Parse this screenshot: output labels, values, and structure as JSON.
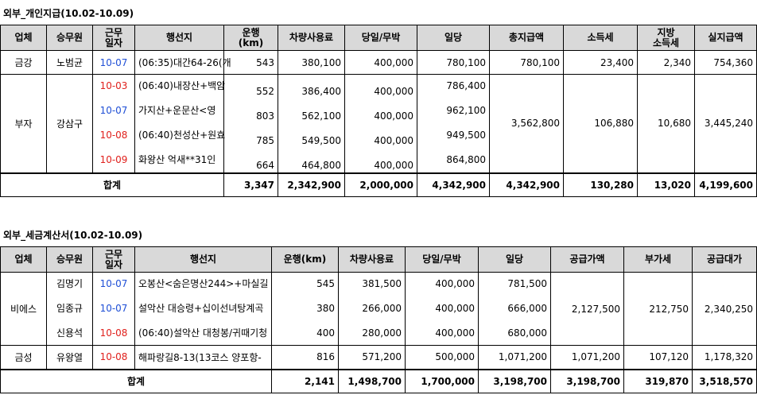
{
  "table1": {
    "title": "외부_개인지급(10.02-10.09)",
    "headers": [
      "업체",
      "승무원",
      "근무일자",
      "행선지",
      "운행(km)",
      "차량사용료",
      "당일/무박",
      "일당",
      "총지급액",
      "소득세",
      "지방소득세",
      "실지급액"
    ],
    "header_lines": {
      "workday": [
        "근무",
        "일자"
      ],
      "km": [
        "운행",
        "(km)"
      ],
      "local_tax": [
        "지방",
        "소득세"
      ]
    },
    "geumgang": {
      "company": "금강",
      "crew": "노범균",
      "date": "10-07",
      "route": "(06:35)대간64-26(개",
      "km": "543",
      "vehicle_fee": "380,100",
      "trip": "400,000",
      "daily": "780,100",
      "total": "780,100",
      "income_tax": "23,400",
      "local_tax": "2,340",
      "net": "754,360"
    },
    "buja": {
      "company": "부자",
      "crew": "강삼구",
      "dates": [
        "10-03",
        "10-07",
        "10-08",
        "10-09"
      ],
      "routes": [
        "(06:40)내장산+백암",
        "가지산+운문산<영",
        "(06:40)천성산+원효",
        "화왕산 억새**31인"
      ],
      "km": [
        "552",
        "803",
        "785",
        "664"
      ],
      "vehicle_fee": [
        "386,400",
        "562,100",
        "549,500",
        "464,800"
      ],
      "trip": [
        "400,000",
        "400,000",
        "400,000",
        "400,000"
      ],
      "daily": [
        "786,400",
        "962,100",
        "949,500",
        "864,800"
      ],
      "total": "3,562,800",
      "income_tax": "106,880",
      "local_tax": "10,680",
      "net": "3,445,240"
    },
    "totals": {
      "label": "합계",
      "km": "3,347",
      "vehicle_fee": "2,342,900",
      "trip": "2,000,000",
      "daily": "4,342,900",
      "total": "4,342,900",
      "income_tax": "130,280",
      "local_tax": "13,020",
      "net": "4,199,600"
    }
  },
  "table2": {
    "title": "외부_세금계산서(10.02-10.09)",
    "headers": [
      "업체",
      "승무원",
      "근무일자",
      "행선지",
      "운행(km)",
      "차량사용료",
      "당일/무박",
      "일당",
      "공급가액",
      "부가세",
      "공급대가"
    ],
    "header_lines": {
      "workday": [
        "근무",
        "일자"
      ]
    },
    "bieseu": {
      "company": "비에스",
      "crews": [
        "김명기",
        "임종규",
        "신용석"
      ],
      "dates": [
        "10-07",
        "10-07",
        "10-08"
      ],
      "routes": [
        "오봉산<숨은명산244>+마실길",
        "설악산 대승령+십이선녀탕계곡",
        "(06:40)설악산 대청봉/귀때기청"
      ],
      "km": [
        "545",
        "380",
        "400"
      ],
      "vehicle_fee": [
        "381,500",
        "266,000",
        "280,000"
      ],
      "trip": [
        "400,000",
        "400,000",
        "400,000"
      ],
      "daily": [
        "781,500",
        "666,000",
        "680,000"
      ],
      "supply": "2,127,500",
      "vat": "212,750",
      "supply_total": "2,340,250"
    },
    "geumseong": {
      "company": "금성",
      "crew": "유왕열",
      "date": "10-08",
      "route": "해파랑길8-13(13코스 양포항-",
      "km": "816",
      "vehicle_fee": "571,200",
      "trip": "500,000",
      "daily": "1,071,200",
      "supply": "1,071,200",
      "vat": "107,120",
      "supply_total": "1,178,320"
    },
    "totals": {
      "label": "합계",
      "km": "2,141",
      "vehicle_fee": "1,498,700",
      "trip": "1,700,000",
      "daily": "3,198,700",
      "supply": "3,198,700",
      "vat": "319,870",
      "supply_total": "3,518,570"
    }
  },
  "colors": {
    "header_bg": "#d9d9d9",
    "date_blue": "#1f4fd6",
    "date_red": "#e0201c"
  }
}
